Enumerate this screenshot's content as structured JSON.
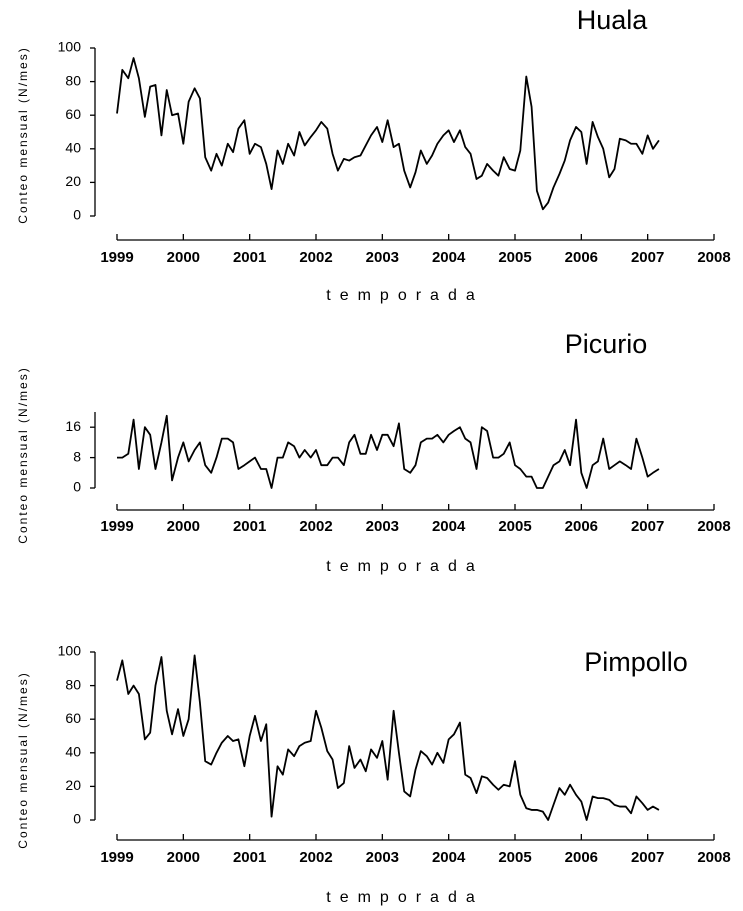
{
  "chart_data": [
    {
      "type": "line",
      "title": "Huala",
      "x_label": "temporada",
      "y_label": "Conteo mensual (N/mes)",
      "xlim": [
        1999,
        2008
      ],
      "xticks": [
        1999,
        2000,
        2001,
        2002,
        2003,
        2004,
        2005,
        2006,
        2007,
        2008
      ],
      "ylim": [
        0,
        100
      ],
      "yticks": [
        0,
        20,
        40,
        60,
        80,
        100
      ],
      "grid": false,
      "series": [
        {
          "color": "#000000",
          "x": [
            1999.0,
            1999.08,
            1999.17,
            1999.25,
            1999.33,
            1999.42,
            1999.5,
            1999.58,
            1999.67,
            1999.75,
            1999.83,
            1999.92,
            2000.0,
            2000.08,
            2000.17,
            2000.25,
            2000.33,
            2000.42,
            2000.5,
            2000.58,
            2000.67,
            2000.75,
            2000.83,
            2000.92,
            2001.0,
            2001.08,
            2001.17,
            2001.25,
            2001.33,
            2001.42,
            2001.5,
            2001.58,
            2001.67,
            2001.75,
            2001.83,
            2001.92,
            2002.0,
            2002.08,
            2002.17,
            2002.25,
            2002.33,
            2002.42,
            2002.5,
            2002.58,
            2002.67,
            2002.75,
            2002.83,
            2002.92,
            2003.0,
            2003.08,
            2003.17,
            2003.25,
            2003.33,
            2003.42,
            2003.5,
            2003.58,
            2003.67,
            2003.75,
            2003.83,
            2003.92,
            2004.0,
            2004.08,
            2004.17,
            2004.25,
            2004.33,
            2004.42,
            2004.5,
            2004.58,
            2004.67,
            2004.75,
            2004.83,
            2004.92,
            2005.0,
            2005.08,
            2005.17,
            2005.25,
            2005.33,
            2005.42,
            2005.5,
            2005.58,
            2005.67,
            2005.75,
            2005.83,
            2005.92,
            2006.0,
            2006.08,
            2006.17,
            2006.25,
            2006.33,
            2006.42,
            2006.5,
            2006.58,
            2006.67,
            2006.75,
            2006.83,
            2006.92,
            2007.0,
            2007.08,
            2007.17
          ],
          "values": [
            61,
            87,
            82,
            94,
            82,
            59,
            77,
            78,
            48,
            75,
            60,
            61,
            43,
            68,
            76,
            70,
            35,
            27,
            37,
            30,
            43,
            38,
            52,
            57,
            37,
            43,
            41,
            31,
            16,
            39,
            31,
            43,
            36,
            50,
            42,
            47,
            51,
            56,
            52,
            37,
            27,
            34,
            33,
            35,
            36,
            42,
            48,
            53,
            44,
            57,
            41,
            43,
            27,
            17,
            26,
            39,
            31,
            36,
            43,
            48,
            51,
            44,
            51,
            41,
            37,
            22,
            24,
            31,
            27,
            24,
            35,
            28,
            27,
            39,
            83,
            65,
            15,
            4,
            8,
            17,
            25,
            33,
            45,
            53,
            50,
            31,
            56,
            47,
            40,
            23,
            28,
            46,
            45,
            43,
            43,
            37,
            48,
            40,
            45
          ]
        }
      ]
    },
    {
      "type": "line",
      "title": "Picurio",
      "x_label": "temporada",
      "y_label": "Conteo mensual (N/mes)",
      "xlim": [
        1999,
        2008
      ],
      "xticks": [
        1999,
        2000,
        2001,
        2002,
        2003,
        2004,
        2005,
        2006,
        2007,
        2008
      ],
      "ylim": [
        0,
        20
      ],
      "yticks": [
        0,
        8,
        16
      ],
      "grid": false,
      "series": [
        {
          "color": "#000000",
          "x": [
            1999.0,
            1999.08,
            1999.17,
            1999.25,
            1999.33,
            1999.42,
            1999.5,
            1999.58,
            1999.67,
            1999.75,
            1999.83,
            1999.92,
            2000.0,
            2000.08,
            2000.17,
            2000.25,
            2000.33,
            2000.42,
            2000.5,
            2000.58,
            2000.67,
            2000.75,
            2000.83,
            2000.92,
            2001.0,
            2001.08,
            2001.17,
            2001.25,
            2001.33,
            2001.42,
            2001.5,
            2001.58,
            2001.67,
            2001.75,
            2001.83,
            2001.92,
            2002.0,
            2002.08,
            2002.17,
            2002.25,
            2002.33,
            2002.42,
            2002.5,
            2002.58,
            2002.67,
            2002.75,
            2002.83,
            2002.92,
            2003.0,
            2003.08,
            2003.17,
            2003.25,
            2003.33,
            2003.42,
            2003.5,
            2003.58,
            2003.67,
            2003.75,
            2003.83,
            2003.92,
            2004.0,
            2004.08,
            2004.17,
            2004.25,
            2004.33,
            2004.42,
            2004.5,
            2004.58,
            2004.67,
            2004.75,
            2004.83,
            2004.92,
            2005.0,
            2005.08,
            2005.17,
            2005.25,
            2005.33,
            2005.42,
            2005.5,
            2005.58,
            2005.67,
            2005.75,
            2005.83,
            2005.92,
            2006.0,
            2006.08,
            2006.17,
            2006.25,
            2006.33,
            2006.42,
            2006.5,
            2006.58,
            2006.67,
            2006.75,
            2006.83,
            2006.92,
            2007.0,
            2007.08,
            2007.17
          ],
          "values": [
            8,
            8,
            9,
            18,
            5,
            16,
            14,
            5,
            12,
            19,
            2,
            8,
            12,
            7,
            10,
            12,
            6,
            4,
            8,
            13,
            13,
            12,
            5,
            6,
            7,
            8,
            5,
            5,
            0,
            8,
            8,
            12,
            11,
            8,
            10,
            8,
            10,
            6,
            6,
            8,
            8,
            6,
            12,
            14,
            9,
            9,
            14,
            10,
            14,
            14,
            11,
            17,
            5,
            4,
            6,
            12,
            13,
            13,
            14,
            12,
            14,
            15,
            16,
            13,
            12,
            5,
            16,
            15,
            8,
            8,
            9,
            12,
            6,
            5,
            3,
            3,
            0,
            0,
            3,
            6,
            7,
            10,
            6,
            18,
            4,
            0,
            6,
            7,
            13,
            5,
            6,
            7,
            6,
            5,
            13,
            8,
            3,
            4,
            5
          ]
        }
      ]
    },
    {
      "type": "line",
      "title": "Pimpollo",
      "x_label": "temporada",
      "y_label": "Conteo mensual (N/mes)",
      "xlim": [
        1999,
        2008
      ],
      "xticks": [
        1999,
        2000,
        2001,
        2002,
        2003,
        2004,
        2005,
        2006,
        2007,
        2008
      ],
      "ylim": [
        0,
        100
      ],
      "yticks": [
        0,
        20,
        40,
        60,
        80,
        100
      ],
      "grid": false,
      "series": [
        {
          "color": "#000000",
          "x": [
            1999.0,
            1999.08,
            1999.17,
            1999.25,
            1999.33,
            1999.42,
            1999.5,
            1999.58,
            1999.67,
            1999.75,
            1999.83,
            1999.92,
            2000.0,
            2000.08,
            2000.17,
            2000.25,
            2000.33,
            2000.42,
            2000.5,
            2000.58,
            2000.67,
            2000.75,
            2000.83,
            2000.92,
            2001.0,
            2001.08,
            2001.17,
            2001.25,
            2001.33,
            2001.42,
            2001.5,
            2001.58,
            2001.67,
            2001.75,
            2001.83,
            2001.92,
            2002.0,
            2002.08,
            2002.17,
            2002.25,
            2002.33,
            2002.42,
            2002.5,
            2002.58,
            2002.67,
            2002.75,
            2002.83,
            2002.92,
            2003.0,
            2003.08,
            2003.17,
            2003.25,
            2003.33,
            2003.42,
            2003.5,
            2003.58,
            2003.67,
            2003.75,
            2003.83,
            2003.92,
            2004.0,
            2004.08,
            2004.17,
            2004.25,
            2004.33,
            2004.42,
            2004.5,
            2004.58,
            2004.67,
            2004.75,
            2004.83,
            2004.92,
            2005.0,
            2005.08,
            2005.17,
            2005.25,
            2005.33,
            2005.42,
            2005.5,
            2005.58,
            2005.67,
            2005.75,
            2005.83,
            2005.92,
            2006.0,
            2006.08,
            2006.17,
            2006.25,
            2006.33,
            2006.42,
            2006.5,
            2006.58,
            2006.67,
            2006.75,
            2006.83,
            2006.92,
            2007.0,
            2007.08,
            2007.17
          ],
          "values": [
            83,
            95,
            75,
            80,
            75,
            48,
            52,
            80,
            97,
            65,
            51,
            66,
            50,
            60,
            98,
            70,
            35,
            33,
            40,
            46,
            50,
            47,
            48,
            32,
            50,
            62,
            47,
            57,
            2,
            32,
            27,
            42,
            38,
            44,
            46,
            47,
            65,
            55,
            41,
            36,
            19,
            22,
            44,
            31,
            36,
            29,
            42,
            37,
            47,
            24,
            65,
            40,
            17,
            14,
            30,
            41,
            38,
            33,
            40,
            34,
            48,
            51,
            58,
            27,
            25,
            16,
            26,
            25,
            21,
            18,
            21,
            20,
            35,
            15,
            7,
            6,
            6,
            5,
            0,
            9,
            19,
            15,
            21,
            15,
            11,
            0,
            14,
            13,
            13,
            12,
            9,
            8,
            8,
            4,
            14,
            10,
            6,
            8,
            6
          ]
        }
      ]
    }
  ]
}
